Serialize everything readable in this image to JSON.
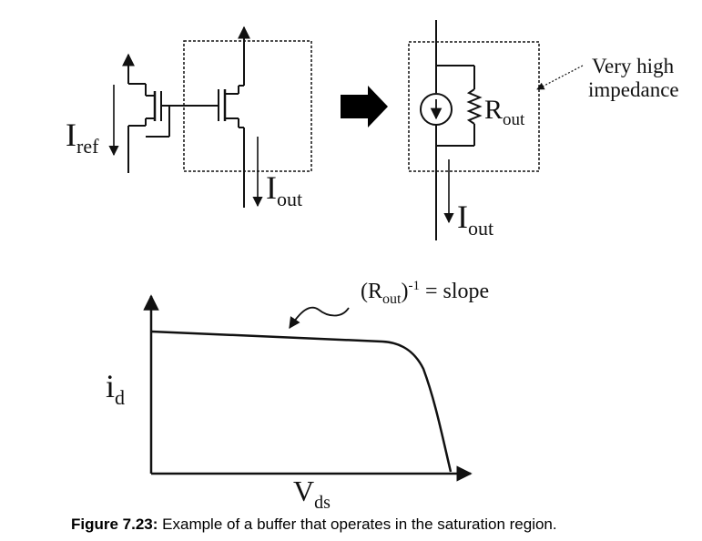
{
  "left_circuit": {
    "iref_main": "I",
    "iref_sub": "ref",
    "iout_main": "I",
    "iout_sub": "out"
  },
  "right_circuit": {
    "rout_main": "R",
    "rout_sub": "out",
    "iout_main": "I",
    "iout_sub": "out",
    "annotation_line1": "Very high",
    "annotation_line2": "impedance"
  },
  "graph": {
    "ylabel_main": "i",
    "ylabel_sub": "d",
    "xlabel_main": "V",
    "xlabel_sub": "ds",
    "slope_open": "(R",
    "slope_sub": "out",
    "slope_close": ")",
    "slope_exp": "-1",
    "slope_rest": " = slope"
  },
  "caption": {
    "label": "Figure 7.23:",
    "text": " Example of a buffer that operates in the saturation region."
  }
}
